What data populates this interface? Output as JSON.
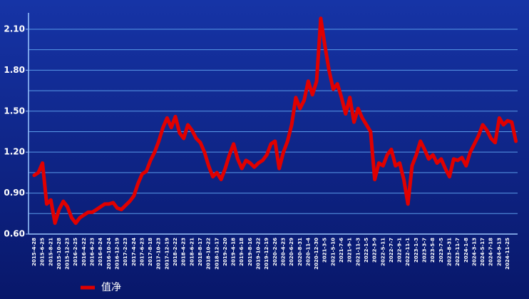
{
  "chart_data": {
    "type": "line",
    "categories": [
      "2015-4-28",
      null,
      "2015-6-25",
      null,
      "2015-8-21",
      null,
      "2015-10-28",
      null,
      "2015-12-23",
      null,
      "2016-2-25",
      null,
      "2016-4-22",
      null,
      "2016-6-23",
      null,
      "2016-8-24",
      null,
      "2016-10-24",
      null,
      "2016-12-19",
      null,
      "2017-2-23",
      null,
      "2017-4-24",
      null,
      "2017-6-23",
      null,
      "2017-8-18",
      null,
      "2017-10-23",
      null,
      "2017-12-19",
      null,
      "2018-2-22",
      null,
      "2018-4-23",
      null,
      "2018-6-21",
      null,
      "2018-8-17",
      null,
      "2018-10-22",
      null,
      "2018-12-17",
      null,
      "2019-2-20",
      null,
      "2019-4-18",
      null,
      "2019-6-18",
      null,
      "2019-8-16",
      null,
      "2019-10-22",
      null,
      "2019-12-19",
      null,
      "2020-2-26",
      null,
      "2020-4-23",
      null,
      "2020-6-29",
      null,
      "2020-8-31",
      null,
      "2020-11-4",
      null,
      "2020-12-30",
      null,
      "2021-3-5",
      null,
      "2021-5-10",
      null,
      "2021-7-6",
      null,
      "2021-9-1",
      null,
      "2021-11-3",
      null,
      "2022-1-5",
      null,
      "2022-3-9",
      null,
      "2022-5-11",
      null,
      "2022-7-7",
      null,
      "2022-9-1",
      null,
      "2022-11-1",
      null,
      "2023-1-3",
      null,
      "2023-3-7",
      null,
      "2023-5-8",
      null,
      "2023-7-5",
      null,
      "2023-8-31",
      null,
      "2023-11-7",
      null,
      "2024-1-8",
      null,
      "2024-3-13",
      null,
      "2024-5-17",
      null,
      "2024-7-18",
      null,
      "2024-9-13",
      null,
      "2024-11-25",
      null,
      null
    ],
    "series": [
      {
        "name": "值净",
        "color": "#e00000",
        "values": [
          1.03,
          1.05,
          1.12,
          0.82,
          0.85,
          0.68,
          0.78,
          0.84,
          0.8,
          0.72,
          0.68,
          0.72,
          0.74,
          0.76,
          0.76,
          0.78,
          0.8,
          0.82,
          0.82,
          0.83,
          0.79,
          0.78,
          0.81,
          0.84,
          0.88,
          0.97,
          1.04,
          1.06,
          1.14,
          1.2,
          1.28,
          1.38,
          1.45,
          1.38,
          1.46,
          1.34,
          1.3,
          1.4,
          1.36,
          1.3,
          1.27,
          1.2,
          1.1,
          1.02,
          1.05,
          1.0,
          1.08,
          1.18,
          1.26,
          1.15,
          1.08,
          1.14,
          1.12,
          1.09,
          1.12,
          1.14,
          1.18,
          1.26,
          1.28,
          1.08,
          1.2,
          1.28,
          1.4,
          1.6,
          1.52,
          1.58,
          1.72,
          1.62,
          1.72,
          2.18,
          1.98,
          1.8,
          1.66,
          1.7,
          1.6,
          1.48,
          1.6,
          1.42,
          1.52,
          1.45,
          1.4,
          1.35,
          1.0,
          1.12,
          1.1,
          1.18,
          1.22,
          1.1,
          1.12,
          1.0,
          0.82,
          1.1,
          1.18,
          1.28,
          1.22,
          1.15,
          1.18,
          1.12,
          1.15,
          1.08,
          1.02,
          1.15,
          1.14,
          1.16,
          1.1,
          1.2,
          1.26,
          1.32,
          1.4,
          1.36,
          1.3,
          1.27,
          1.45,
          1.4,
          1.43,
          1.42,
          1.28
        ]
      }
    ],
    "ylim": [
      0.6,
      2.22
    ],
    "yticks": [
      {
        "value": 0.6,
        "label": "0.60"
      },
      {
        "value": 0.9,
        "label": "0.90"
      },
      {
        "value": 1.2,
        "label": "1.20"
      },
      {
        "value": 1.5,
        "label": "1.50"
      },
      {
        "value": 1.8,
        "label": "1.80"
      },
      {
        "value": 2.1,
        "label": "2.10"
      }
    ],
    "minor_yticks": [
      0.75,
      1.05,
      1.35,
      1.65,
      1.95
    ],
    "grid": true,
    "legend": "bottom-left"
  }
}
